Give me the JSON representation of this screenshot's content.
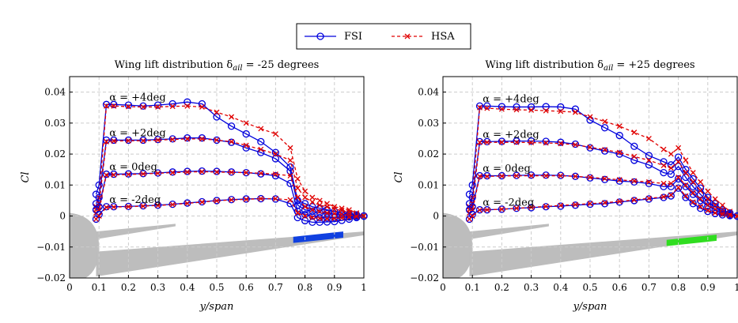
{
  "legend": [
    {
      "name": "FSI",
      "color": "#0000dd",
      "marker": "circle",
      "dash": "solid"
    },
    {
      "name": "HSA",
      "color": "#e00000",
      "marker": "cross",
      "dash": "dashed"
    }
  ],
  "chart_data": [
    {
      "type": "line",
      "title": "Wing lift distribution δ",
      "title_subscript": "ail",
      "title_suffix": "= -25 degrees",
      "x_label": "y/span",
      "y_label": "Cl",
      "grid": true,
      "xlim": [
        0,
        1
      ],
      "ylim": [
        -0.02,
        0.045
      ],
      "xticks": [
        0,
        0.1,
        0.2,
        0.3,
        0.4,
        0.5,
        0.6,
        0.7,
        0.8,
        0.9,
        1
      ],
      "yticks": [
        {
          "value": -0.02,
          "label": "−0.02"
        },
        {
          "value": -0.01,
          "label": "−0.01"
        },
        0,
        0.01,
        0.02,
        0.03,
        0.04
      ],
      "annotations": [
        "α = +4deg",
        "α = +2deg",
        "α = 0deg",
        "α = -2deg"
      ],
      "x": [
        0.09,
        0.1,
        0.125,
        0.15,
        0.2,
        0.25,
        0.3,
        0.35,
        0.4,
        0.45,
        0.5,
        0.55,
        0.6,
        0.65,
        0.7,
        0.75,
        0.775,
        0.8,
        0.825,
        0.85,
        0.875,
        0.9,
        0.925,
        0.95,
        0.975,
        1.0
      ],
      "series": [
        {
          "name": "FSI",
          "values": [
            0.007,
            0.01,
            0.036,
            0.036,
            0.0358,
            0.0355,
            0.0358,
            0.0362,
            0.0368,
            0.0362,
            0.032,
            0.029,
            0.0265,
            0.024,
            0.0205,
            0.0158,
            0.005,
            0.004,
            0.003,
            0.0025,
            0.002,
            0.0015,
            0.001,
            0.0007,
            0.0004,
            0
          ]
        },
        {
          "name": "HSA",
          "values": [
            0.003,
            0.006,
            0.0355,
            0.0355,
            0.0353,
            0.0352,
            0.0352,
            0.0354,
            0.0355,
            0.0352,
            0.0335,
            0.032,
            0.03,
            0.0282,
            0.0265,
            0.022,
            0.012,
            0.008,
            0.006,
            0.005,
            0.004,
            0.003,
            0.0025,
            0.002,
            0.001,
            0
          ]
        },
        {
          "name": "FSI",
          "values": [
            0.004,
            0.006,
            0.0245,
            0.0245,
            0.0245,
            0.0245,
            0.0247,
            0.0249,
            0.0252,
            0.0252,
            0.0245,
            0.0238,
            0.022,
            0.0205,
            0.0185,
            0.0145,
            0.0035,
            0.002,
            0.0015,
            0.001,
            0.0008,
            0.0006,
            0.0005,
            0.0003,
            0.0002,
            0
          ]
        },
        {
          "name": "HSA",
          "values": [
            0.002,
            0.004,
            0.024,
            0.0242,
            0.0243,
            0.0243,
            0.0245,
            0.0247,
            0.0249,
            0.0249,
            0.0245,
            0.024,
            0.0228,
            0.0215,
            0.02,
            0.018,
            0.009,
            0.006,
            0.0045,
            0.0035,
            0.003,
            0.0022,
            0.0018,
            0.0012,
            0.0006,
            0
          ]
        },
        {
          "name": "FSI",
          "values": [
            0.002,
            0.003,
            0.0135,
            0.0135,
            0.0136,
            0.0137,
            0.0139,
            0.0142,
            0.0144,
            0.0145,
            0.0144,
            0.0142,
            0.014,
            0.0136,
            0.013,
            0.0105,
            0.0015,
            0.0005,
            0,
            -0.0005,
            -0.0006,
            -0.0005,
            -0.0004,
            -0.0003,
            -0.0001,
            0
          ]
        },
        {
          "name": "HSA",
          "values": [
            0.001,
            0.002,
            0.0132,
            0.0133,
            0.0134,
            0.0136,
            0.0138,
            0.014,
            0.0142,
            0.0143,
            0.0142,
            0.0141,
            0.014,
            0.0138,
            0.0135,
            0.013,
            0.006,
            0.003,
            0.002,
            0.0015,
            0.001,
            0.0008,
            0.0005,
            0.0003,
            0.0001,
            0
          ]
        },
        {
          "name": "FSI",
          "values": [
            -0.001,
            0.0005,
            0.003,
            0.003,
            0.0031,
            0.0033,
            0.0035,
            0.0038,
            0.0042,
            0.0046,
            0.005,
            0.0053,
            0.0055,
            0.0056,
            0.0055,
            0.004,
            -0.0005,
            -0.0015,
            -0.002,
            -0.002,
            -0.0019,
            -0.0018,
            -0.0014,
            -0.001,
            -0.0005,
            0
          ]
        },
        {
          "name": "HSA",
          "values": [
            -0.001,
            0,
            0.0028,
            0.0029,
            0.003,
            0.0032,
            0.0034,
            0.0037,
            0.0041,
            0.0045,
            0.0049,
            0.0052,
            0.0054,
            0.0056,
            0.0056,
            0.0052,
            0.001,
            0,
            -0.0005,
            -0.0008,
            -0.0009,
            -0.0008,
            -0.0006,
            -0.0004,
            -0.0002,
            0
          ]
        }
      ]
    },
    {
      "type": "line",
      "title": "Wing lift distribution δ",
      "title_subscript": "ail",
      "title_suffix": "= +25 degrees",
      "x_label": "y/span",
      "y_label": "Cl",
      "grid": true,
      "xlim": [
        0,
        1
      ],
      "ylim": [
        -0.02,
        0.045
      ],
      "xticks": [
        0,
        0.1,
        0.2,
        0.3,
        0.4,
        0.5,
        0.6,
        0.7,
        0.8,
        0.9,
        1
      ],
      "yticks": [
        {
          "value": -0.02,
          "label": "−0.02"
        },
        {
          "value": -0.01,
          "label": "−0.01"
        },
        0,
        0.01,
        0.02,
        0.03,
        0.04
      ],
      "annotations": [
        "α = +4deg",
        "α = +2deg",
        "α = 0deg",
        "α = -2deg"
      ],
      "x": [
        0.09,
        0.1,
        0.125,
        0.15,
        0.2,
        0.25,
        0.3,
        0.35,
        0.4,
        0.45,
        0.5,
        0.55,
        0.6,
        0.65,
        0.7,
        0.75,
        0.775,
        0.8,
        0.825,
        0.85,
        0.875,
        0.9,
        0.925,
        0.95,
        0.975,
        1.0
      ],
      "series": [
        {
          "name": "FSI",
          "values": [
            0.007,
            0.01,
            0.0355,
            0.0355,
            0.0353,
            0.0352,
            0.0352,
            0.0353,
            0.0352,
            0.0345,
            0.031,
            0.0285,
            0.026,
            0.0225,
            0.0195,
            0.0175,
            0.0165,
            0.019,
            0.015,
            0.012,
            0.009,
            0.006,
            0.004,
            0.002,
            0.001,
            0
          ]
        },
        {
          "name": "HSA",
          "values": [
            0.003,
            0.006,
            0.035,
            0.0348,
            0.0345,
            0.0343,
            0.0342,
            0.034,
            0.0338,
            0.0335,
            0.032,
            0.0305,
            0.029,
            0.027,
            0.025,
            0.0215,
            0.02,
            0.022,
            0.018,
            0.014,
            0.011,
            0.008,
            0.0055,
            0.0035,
            0.0015,
            0
          ]
        },
        {
          "name": "FSI",
          "values": [
            0.004,
            0.006,
            0.024,
            0.024,
            0.0241,
            0.0242,
            0.0242,
            0.0241,
            0.0238,
            0.0232,
            0.022,
            0.021,
            0.02,
            0.018,
            0.0165,
            0.014,
            0.0135,
            0.016,
            0.0125,
            0.0095,
            0.007,
            0.0045,
            0.003,
            0.0015,
            0.0007,
            0
          ]
        },
        {
          "name": "HSA",
          "values": [
            0.002,
            0.004,
            0.0238,
            0.0238,
            0.0238,
            0.0238,
            0.0237,
            0.0236,
            0.0234,
            0.023,
            0.0222,
            0.0214,
            0.0205,
            0.0192,
            0.018,
            0.0163,
            0.0155,
            0.0175,
            0.014,
            0.011,
            0.0082,
            0.0055,
            0.0035,
            0.002,
            0.0008,
            0
          ]
        },
        {
          "name": "FSI",
          "values": [
            0.002,
            0.003,
            0.013,
            0.013,
            0.013,
            0.0131,
            0.0132,
            0.0132,
            0.0131,
            0.0128,
            0.0123,
            0.0118,
            0.0113,
            0.011,
            0.0105,
            0.0095,
            0.0095,
            0.012,
            0.0095,
            0.007,
            0.005,
            0.0032,
            0.002,
            0.001,
            0.0004,
            0
          ]
        },
        {
          "name": "HSA",
          "values": [
            0.001,
            0.002,
            0.0128,
            0.0128,
            0.0129,
            0.013,
            0.013,
            0.013,
            0.013,
            0.0128,
            0.0125,
            0.0121,
            0.0117,
            0.0113,
            0.011,
            0.0105,
            0.0105,
            0.0125,
            0.01,
            0.0075,
            0.0055,
            0.0036,
            0.0022,
            0.0012,
            0.0005,
            0
          ]
        },
        {
          "name": "FSI",
          "values": [
            -0.001,
            0.0005,
            0.002,
            0.002,
            0.0022,
            0.0025,
            0.0027,
            0.003,
            0.0032,
            0.0035,
            0.0038,
            0.004,
            0.0045,
            0.005,
            0.0055,
            0.006,
            0.0065,
            0.009,
            0.006,
            0.004,
            0.0025,
            0.0015,
            0.0008,
            0.0004,
            0.0001,
            0
          ]
        },
        {
          "name": "HSA",
          "values": [
            -0.001,
            0,
            0.0019,
            0.002,
            0.0022,
            0.0025,
            0.0028,
            0.0031,
            0.0034,
            0.0037,
            0.004,
            0.0043,
            0.0047,
            0.0052,
            0.0057,
            0.0062,
            0.0068,
            0.0092,
            0.0065,
            0.0045,
            0.003,
            0.0018,
            0.001,
            0.0005,
            0.0002,
            0
          ]
        }
      ]
    }
  ]
}
